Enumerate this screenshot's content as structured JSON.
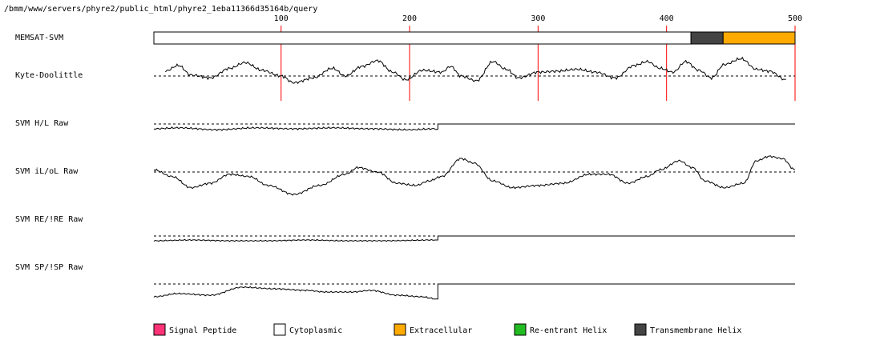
{
  "header": {
    "path": "/bmm/www/servers/phyre2/public_html/phyre2_1eba11366d35164b/query"
  },
  "chart_data": {
    "type": "line",
    "x_axis": {
      "min": 1,
      "max": 500,
      "ticks": [
        100,
        200,
        300,
        400,
        500
      ]
    },
    "tracks": {
      "memsat": {
        "label": "MEMSAT-SVM",
        "segments": [
          {
            "start": 1,
            "end": 419,
            "class": "Cytoplasmic"
          },
          {
            "start": 419,
            "end": 444,
            "class": "Transmembrane Helix"
          },
          {
            "start": 444,
            "end": 500,
            "class": "Extracellular"
          }
        ]
      },
      "kyte": {
        "label": "Kyte-Doolittle",
        "range": [
          1,
          493
        ],
        "anchors": [
          [
            10,
            0.25
          ],
          [
            20,
            0.55
          ],
          [
            30,
            0.05
          ],
          [
            45,
            -0.1
          ],
          [
            60,
            0.4
          ],
          [
            72,
            0.7
          ],
          [
            85,
            0.3
          ],
          [
            100,
            0.0
          ],
          [
            110,
            -0.35
          ],
          [
            125,
            -0.1
          ],
          [
            140,
            0.4
          ],
          [
            150,
            0.0
          ],
          [
            163,
            0.5
          ],
          [
            175,
            0.8
          ],
          [
            187,
            0.2
          ],
          [
            197,
            -0.2
          ],
          [
            210,
            0.3
          ],
          [
            225,
            0.2
          ],
          [
            232,
            0.5
          ],
          [
            240,
            0.0
          ],
          [
            252,
            -0.25
          ],
          [
            265,
            0.75
          ],
          [
            275,
            0.35
          ],
          [
            285,
            -0.1
          ],
          [
            300,
            0.2
          ],
          [
            315,
            0.25
          ],
          [
            330,
            0.35
          ],
          [
            345,
            0.2
          ],
          [
            360,
            -0.1
          ],
          [
            375,
            0.55
          ],
          [
            385,
            0.75
          ],
          [
            395,
            0.4
          ],
          [
            405,
            0.2
          ],
          [
            415,
            0.75
          ],
          [
            425,
            0.3
          ],
          [
            435,
            -0.1
          ],
          [
            445,
            0.6
          ],
          [
            458,
            0.9
          ],
          [
            470,
            0.35
          ],
          [
            480,
            0.25
          ],
          [
            493,
            -0.2
          ]
        ]
      },
      "svm_hl": {
        "label": "SVM H/L Raw",
        "anchors": [
          [
            1,
            -0.25
          ],
          [
            20,
            -0.2
          ],
          [
            50,
            -0.3
          ],
          [
            80,
            -0.2
          ],
          [
            110,
            -0.25
          ],
          [
            140,
            -0.2
          ],
          [
            170,
            -0.25
          ],
          [
            200,
            -0.3
          ],
          [
            220,
            -0.25
          ]
        ],
        "flat_from": 222
      },
      "svm_il": {
        "label": "SVM iL/oL Raw",
        "range": [
          1,
          500
        ],
        "anchors": [
          [
            1,
            0.1
          ],
          [
            15,
            -0.2
          ],
          [
            30,
            -0.7
          ],
          [
            45,
            -0.5
          ],
          [
            60,
            -0.1
          ],
          [
            75,
            -0.2
          ],
          [
            90,
            -0.6
          ],
          [
            110,
            -1.0
          ],
          [
            130,
            -0.6
          ],
          [
            150,
            -0.1
          ],
          [
            160,
            0.2
          ],
          [
            175,
            0.0
          ],
          [
            190,
            -0.5
          ],
          [
            205,
            -0.6
          ],
          [
            215,
            -0.4
          ],
          [
            225,
            -0.2
          ],
          [
            240,
            0.6
          ],
          [
            250,
            0.4
          ],
          [
            265,
            -0.4
          ],
          [
            280,
            -0.7
          ],
          [
            300,
            -0.6
          ],
          [
            320,
            -0.5
          ],
          [
            340,
            -0.1
          ],
          [
            355,
            -0.1
          ],
          [
            370,
            -0.5
          ],
          [
            385,
            -0.2
          ],
          [
            395,
            0.1
          ],
          [
            410,
            0.5
          ],
          [
            420,
            0.2
          ],
          [
            430,
            -0.4
          ],
          [
            445,
            -0.7
          ],
          [
            460,
            -0.5
          ],
          [
            470,
            0.5
          ],
          [
            480,
            0.7
          ],
          [
            490,
            0.6
          ],
          [
            500,
            0.1
          ]
        ]
      },
      "svm_re": {
        "label": "SVM RE/!RE Raw",
        "anchors": [
          [
            1,
            -0.3
          ],
          [
            30,
            -0.25
          ],
          [
            60,
            -0.3
          ],
          [
            90,
            -0.3
          ],
          [
            120,
            -0.25
          ],
          [
            150,
            -0.3
          ],
          [
            180,
            -0.3
          ],
          [
            220,
            -0.25
          ]
        ],
        "flat_from": 222
      },
      "svm_sp": {
        "label": "SVM SP/!SP Raw",
        "anchors": [
          [
            1,
            -0.8
          ],
          [
            20,
            -0.6
          ],
          [
            45,
            -0.7
          ],
          [
            70,
            -0.2
          ],
          [
            95,
            -0.3
          ],
          [
            120,
            -0.4
          ],
          [
            135,
            -0.5
          ],
          [
            155,
            -0.5
          ],
          [
            170,
            -0.4
          ],
          [
            190,
            -0.7
          ],
          [
            210,
            -0.8
          ],
          [
            218,
            -0.9
          ]
        ],
        "flat_from": 222
      }
    },
    "legend": [
      {
        "label": "Signal Peptide",
        "color": "#ff3377"
      },
      {
        "label": "Cytoplasmic",
        "color": "#ffffff"
      },
      {
        "label": "Extracellular",
        "color": "#ffaa00"
      },
      {
        "label": "Re-entrant Helix",
        "color": "#22bb22"
      },
      {
        "label": "Transmembrane Helix",
        "color": "#444444"
      }
    ],
    "colors": {
      "tick_line": "#ff0000"
    }
  }
}
